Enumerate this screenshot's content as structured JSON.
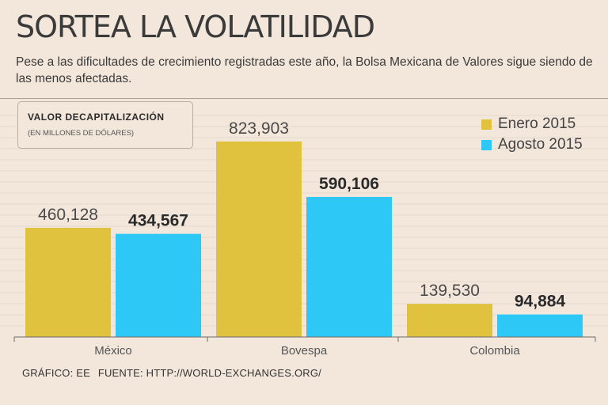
{
  "header": {
    "title": "SORTEA LA VOLATILIDAD",
    "subtitle": "Pese a las dificultades de crecimiento registradas este año, la Bolsa Mexicana de Valores sigue siendo de las menos afectadas."
  },
  "chart_data": {
    "type": "bar",
    "title": "VALOR DECAPITALIZACIÓN",
    "subtitle": "(EN MILLONES DE DÓLARES)",
    "categories": [
      "México",
      "Bovespa",
      "Colombia"
    ],
    "series": [
      {
        "name": "Enero 2015",
        "color": "#e0c23f",
        "values": [
          460128,
          823903,
          139530
        ],
        "labels": [
          "460,128",
          "823,903",
          "139,530"
        ]
      },
      {
        "name": "Agosto 2015",
        "color": "#2ec8f6",
        "values": [
          434567,
          590106,
          94884
        ],
        "labels": [
          "434,567",
          "590,106",
          "94,884"
        ]
      }
    ],
    "ylim": [
      0,
      1000000
    ],
    "grid": true,
    "legend": "top-right"
  },
  "footer": {
    "credit": "GRÁFICO: EE",
    "source": "FUENTE: HTTP://WORLD-EXCHANGES.ORG/"
  }
}
